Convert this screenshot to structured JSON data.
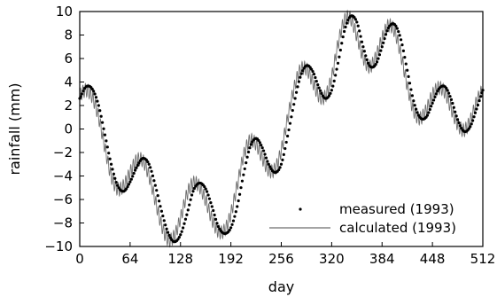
{
  "chart_data": {
    "type": "line",
    "xlabel": "day",
    "ylabel": "rainfall (mm)",
    "xlim": [
      0,
      512
    ],
    "ylim": [
      -10,
      10
    ],
    "xticks": [
      0,
      64,
      128,
      192,
      256,
      320,
      384,
      448,
      512
    ],
    "yticks": [
      -10,
      -8,
      -6,
      -4,
      -2,
      0,
      2,
      4,
      6,
      8,
      10
    ],
    "legend_position": "bottom-right",
    "series": [
      {
        "name": "measured (1993)",
        "style": "dotted",
        "color": "#000000",
        "x": [
          0,
          8,
          16,
          24,
          32,
          40,
          48,
          56,
          64,
          72,
          80,
          88,
          96,
          104,
          112,
          120,
          128,
          136,
          144,
          152,
          160,
          168,
          176,
          184,
          192,
          200,
          208,
          216,
          224,
          232,
          240,
          248,
          256,
          264,
          272,
          280,
          288,
          296,
          304,
          312,
          320,
          328,
          336,
          344,
          352,
          360,
          368,
          376,
          384,
          392,
          400,
          408,
          416,
          424,
          432,
          440,
          448,
          456,
          464,
          472,
          480,
          488,
          496,
          504,
          512
        ],
        "y": [
          2.6,
          3.6,
          3.4,
          2.0,
          -0.5,
          -3.0,
          -4.8,
          -5.3,
          -4.5,
          -3.3,
          -2.5,
          -3.0,
          -4.8,
          -7.0,
          -8.8,
          -9.6,
          -9.0,
          -7.3,
          -5.3,
          -4.6,
          -5.1,
          -6.6,
          -8.3,
          -8.9,
          -8.4,
          -6.6,
          -3.9,
          -1.6,
          -0.8,
          -1.6,
          -3.0,
          -3.7,
          -3.0,
          -0.6,
          2.1,
          4.4,
          5.4,
          4.9,
          3.5,
          2.6,
          3.3,
          5.6,
          8.3,
          9.6,
          9.1,
          7.0,
          5.4,
          5.5,
          7.0,
          8.6,
          8.9,
          7.6,
          5.0,
          2.4,
          1.0,
          1.0,
          2.2,
          3.4,
          3.6,
          2.5,
          0.8,
          -0.2,
          0.2,
          1.7,
          3.3
        ]
      },
      {
        "name": "calculated (1993)",
        "style": "solid",
        "color": "#6e6e6e",
        "x": [
          0,
          8,
          16,
          24,
          32,
          40,
          48,
          56,
          64,
          72,
          80,
          88,
          96,
          104,
          112,
          120,
          128,
          136,
          144,
          152,
          160,
          168,
          176,
          184,
          192,
          200,
          208,
          216,
          224,
          232,
          240,
          248,
          256,
          264,
          272,
          280,
          288,
          296,
          304,
          312,
          320,
          328,
          336,
          344,
          352,
          360,
          368,
          376,
          384,
          392,
          400,
          408,
          416,
          424,
          432,
          440,
          448,
          456,
          464,
          472,
          480,
          488,
          496,
          504,
          512
        ],
        "y": [
          2.9,
          3.3,
          2.7,
          1.0,
          -1.6,
          -4.0,
          -5.1,
          -4.8,
          -3.7,
          -2.7,
          -2.7,
          -4.0,
          -6.1,
          -8.2,
          -9.4,
          -9.1,
          -7.6,
          -5.6,
          -4.6,
          -4.9,
          -6.1,
          -7.7,
          -8.7,
          -8.6,
          -7.2,
          -4.8,
          -2.3,
          -1.0,
          -1.3,
          -2.5,
          -3.5,
          -3.4,
          -1.8,
          0.9,
          3.4,
          5.0,
          5.1,
          4.0,
          2.8,
          2.8,
          4.4,
          7.2,
          9.2,
          9.4,
          7.9,
          6.1,
          5.3,
          6.1,
          7.7,
          8.8,
          8.3,
          6.3,
          3.7,
          1.6,
          0.9,
          1.6,
          2.9,
          3.5,
          3.1,
          1.7,
          0.4,
          -0.1,
          0.7,
          2.3,
          3.4
        ]
      }
    ]
  }
}
